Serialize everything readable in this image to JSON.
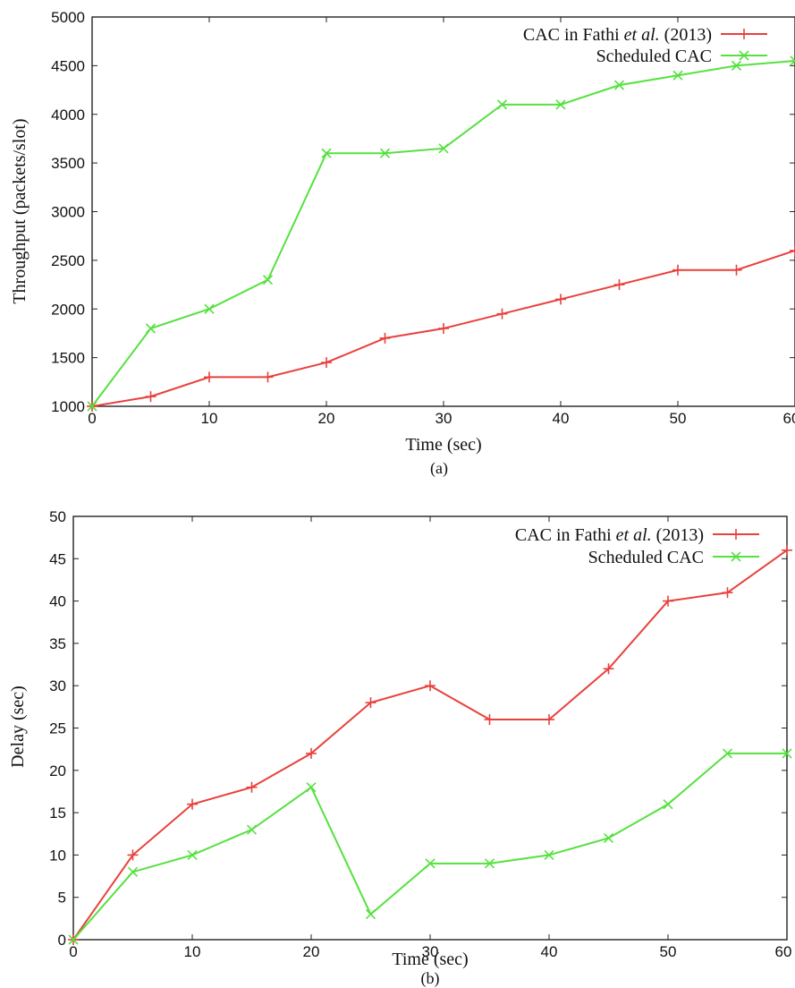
{
  "chart_data": [
    {
      "type": "line",
      "caption": "(a)",
      "xlabel": "Time (sec)",
      "ylabel": "Throughput (packets/slot)",
      "xlim": [
        0,
        60
      ],
      "ylim": [
        1000,
        5000
      ],
      "xticks": [
        0,
        10,
        20,
        30,
        40,
        50,
        60
      ],
      "yticks": [
        1000,
        1500,
        2000,
        2500,
        3000,
        3500,
        4000,
        4500,
        5000
      ],
      "x": [
        0,
        5,
        10,
        15,
        20,
        25,
        30,
        35,
        40,
        45,
        50,
        55,
        60
      ],
      "legend_position": "top-right",
      "grid": false,
      "series": [
        {
          "name_parts": [
            "CAC in Fathi ",
            "et al.",
            " (2013)"
          ],
          "color": "#e8413c",
          "marker": "plus",
          "values": [
            1000,
            1100,
            1300,
            1300,
            1450,
            1700,
            1800,
            1950,
            2100,
            2250,
            2400,
            2400,
            2600
          ]
        },
        {
          "name": "Scheduled CAC",
          "color": "#55e13f",
          "marker": "x",
          "values": [
            1000,
            1800,
            2000,
            2300,
            3600,
            3600,
            3650,
            4100,
            4100,
            4300,
            4400,
            4500,
            4550
          ]
        }
      ]
    },
    {
      "type": "line",
      "caption": "(b)",
      "xlabel": "Time (sec)",
      "ylabel": "Delay (sec)",
      "xlim": [
        0,
        60
      ],
      "ylim": [
        0,
        50
      ],
      "xticks": [
        0,
        10,
        20,
        30,
        40,
        50,
        60
      ],
      "yticks": [
        0,
        5,
        10,
        15,
        20,
        25,
        30,
        35,
        40,
        45,
        50
      ],
      "x": [
        0,
        5,
        10,
        15,
        20,
        25,
        30,
        35,
        40,
        45,
        50,
        55,
        60
      ],
      "legend_position": "top-right",
      "grid": false,
      "series": [
        {
          "name_parts": [
            "CAC in Fathi ",
            "et al.",
            " (2013)"
          ],
          "color": "#e8413c",
          "marker": "plus",
          "values": [
            0,
            10,
            16,
            18,
            22,
            28,
            30,
            26,
            26,
            32,
            40,
            41,
            46
          ]
        },
        {
          "name": "Scheduled CAC",
          "color": "#55e13f",
          "marker": "x",
          "values": [
            0,
            8,
            10,
            13,
            18,
            3,
            9,
            9,
            10,
            12,
            16,
            22,
            22
          ]
        }
      ]
    }
  ]
}
